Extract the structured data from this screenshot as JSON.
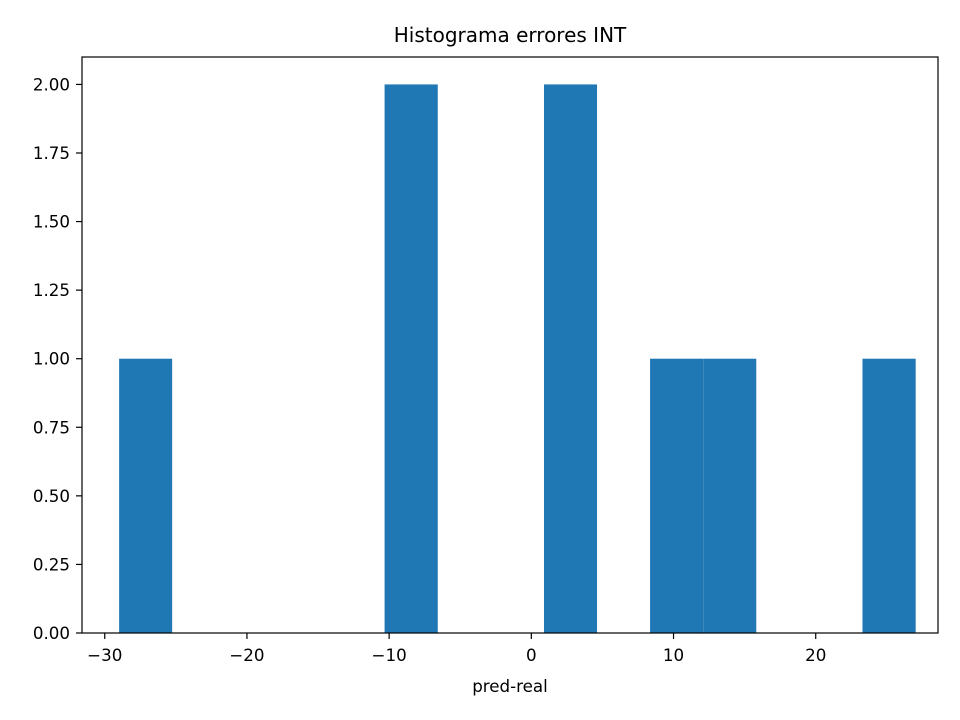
{
  "chart_data": {
    "type": "bar",
    "title": "Histograma errores INT",
    "xlabel": "pred-real",
    "ylabel": "",
    "xlim": [
      -31.6,
      28.6
    ],
    "ylim": [
      0,
      2.1
    ],
    "grid": false,
    "color": "#1f77b4",
    "bins": [
      {
        "x0": -28.99,
        "x1": -25.26,
        "value": 1
      },
      {
        "x0": -25.26,
        "x1": -21.52,
        "value": 0
      },
      {
        "x0": -21.52,
        "x1": -17.79,
        "value": 0
      },
      {
        "x0": -17.79,
        "x1": -14.05,
        "value": 0
      },
      {
        "x0": -14.05,
        "x1": -10.32,
        "value": 0
      },
      {
        "x0": -10.32,
        "x1": -6.58,
        "value": 2
      },
      {
        "x0": -6.58,
        "x1": -2.85,
        "value": 0
      },
      {
        "x0": -2.85,
        "x1": 0.89,
        "value": 0
      },
      {
        "x0": 0.89,
        "x1": 4.62,
        "value": 2
      },
      {
        "x0": 4.62,
        "x1": 8.35,
        "value": 0
      },
      {
        "x0": 8.35,
        "x1": 12.09,
        "value": 1
      },
      {
        "x0": 12.09,
        "x1": 15.82,
        "value": 1
      },
      {
        "x0": 15.82,
        "x1": 19.56,
        "value": 0
      },
      {
        "x0": 19.56,
        "x1": 23.29,
        "value": 0
      },
      {
        "x0": 23.29,
        "x1": 27.03,
        "value": 1
      }
    ],
    "x_ticks": [
      -30,
      -20,
      -10,
      0,
      10,
      20
    ],
    "x_tick_labels": [
      "−30",
      "−20",
      "−10",
      "0",
      "10",
      "20"
    ],
    "y_ticks": [
      0,
      0.25,
      0.5,
      0.75,
      1.0,
      1.25,
      1.5,
      1.75,
      2.0
    ],
    "y_tick_labels": [
      "0.00",
      "0.25",
      "0.50",
      "0.75",
      "1.00",
      "1.25",
      "1.50",
      "1.75",
      "2.00"
    ]
  }
}
